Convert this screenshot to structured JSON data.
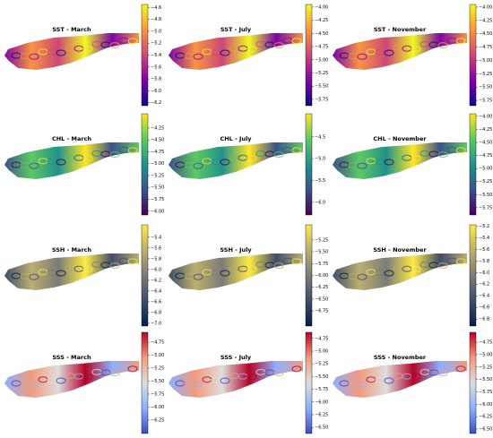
{
  "chart_data": [
    {
      "type": "map",
      "title": "SST - March",
      "colormap": [
        "#0d0887",
        "#7e03a8",
        "#cc4778",
        "#f89540",
        "#f0f921"
      ],
      "clim": [
        -6.25,
        -4.55
      ],
      "cticks": [
        {
          "value": -4.6,
          "label": "−4.6"
        },
        {
          "value": -4.8,
          "label": "−4.8"
        },
        {
          "value": -5.0,
          "label": "−5.0"
        },
        {
          "value": -5.2,
          "label": "−5.2"
        },
        {
          "value": -5.4,
          "label": "−5.4"
        },
        {
          "value": -5.6,
          "label": "−5.6"
        },
        {
          "value": -5.8,
          "label": "−5.8"
        },
        {
          "value": -6.0,
          "label": "−6.0"
        },
        {
          "value": -6.2,
          "label": "−6.2"
        }
      ]
    },
    {
      "type": "map",
      "title": "SST - July",
      "colormap": [
        "#0d0887",
        "#7e03a8",
        "#cc4778",
        "#f89540",
        "#f0f921"
      ],
      "clim": [
        -5.87,
        -3.95
      ],
      "cticks": [
        {
          "value": -4.0,
          "label": "−4.00"
        },
        {
          "value": -4.25,
          "label": "−4.25"
        },
        {
          "value": -4.5,
          "label": "−4.50"
        },
        {
          "value": -4.75,
          "label": "−4.75"
        },
        {
          "value": -5.0,
          "label": "−5.00"
        },
        {
          "value": -5.25,
          "label": "−5.25"
        },
        {
          "value": -5.5,
          "label": "−5.50"
        },
        {
          "value": -5.75,
          "label": "−5.75"
        }
      ]
    },
    {
      "type": "map",
      "title": "SST - November",
      "colormap": [
        "#0d0887",
        "#7e03a8",
        "#cc4778",
        "#f89540",
        "#f0f921"
      ],
      "clim": [
        -5.85,
        -3.95
      ],
      "cticks": [
        {
          "value": -4.0,
          "label": "−4.00"
        },
        {
          "value": -4.25,
          "label": "−4.25"
        },
        {
          "value": -4.5,
          "label": "−4.50"
        },
        {
          "value": -4.75,
          "label": "−4.75"
        },
        {
          "value": -5.0,
          "label": "−5.00"
        },
        {
          "value": -5.25,
          "label": "−5.25"
        },
        {
          "value": -5.5,
          "label": "−5.50"
        },
        {
          "value": -5.75,
          "label": "−5.75"
        }
      ]
    },
    {
      "type": "map",
      "title": "CHL - March",
      "colormap": [
        "#440154",
        "#3b528b",
        "#21918c",
        "#5ec962",
        "#fde725"
      ],
      "clim": [
        -6.08,
        -3.95
      ],
      "cticks": [
        {
          "value": -4.25,
          "label": "−4.25"
        },
        {
          "value": -4.5,
          "label": "−4.50"
        },
        {
          "value": -4.75,
          "label": "−4.75"
        },
        {
          "value": -5.0,
          "label": "−5.00"
        },
        {
          "value": -5.25,
          "label": "−5.25"
        },
        {
          "value": -5.5,
          "label": "−5.50"
        },
        {
          "value": -5.75,
          "label": "−5.75"
        },
        {
          "value": -6.0,
          "label": "−6.00"
        }
      ]
    },
    {
      "type": "map",
      "title": "CHL - July",
      "colormap": [
        "#440154",
        "#3b528b",
        "#21918c",
        "#5ec962",
        "#fde725"
      ],
      "clim": [
        -6.29,
        -3.97
      ],
      "cticks": [
        {
          "value": -4.5,
          "label": "−4.5"
        },
        {
          "value": -5.0,
          "label": "−5.0"
        },
        {
          "value": -5.5,
          "label": "−5.5"
        },
        {
          "value": -6.0,
          "label": "−6.0"
        }
      ]
    },
    {
      "type": "map",
      "title": "CHL - November",
      "colormap": [
        "#440154",
        "#3b528b",
        "#21918c",
        "#5ec962",
        "#fde725"
      ],
      "clim": [
        -5.89,
        -3.95
      ],
      "cticks": [
        {
          "value": -4.0,
          "label": "−4.00"
        },
        {
          "value": -4.25,
          "label": "−4.25"
        },
        {
          "value": -4.5,
          "label": "−4.50"
        },
        {
          "value": -4.75,
          "label": "−4.75"
        },
        {
          "value": -5.0,
          "label": "−5.00"
        },
        {
          "value": -5.25,
          "label": "−5.25"
        },
        {
          "value": -5.5,
          "label": "−5.50"
        },
        {
          "value": -5.75,
          "label": "−5.75"
        }
      ]
    },
    {
      "type": "map",
      "title": "SSH - March",
      "colormap": [
        "#00204d",
        "#414d6b",
        "#7c7b78",
        "#bcaf6f",
        "#ffea46"
      ],
      "clim": [
        -7.05,
        -5.17
      ],
      "cticks": [
        {
          "value": -5.4,
          "label": "−5.4"
        },
        {
          "value": -5.6,
          "label": "−5.6"
        },
        {
          "value": -5.8,
          "label": "−5.8"
        },
        {
          "value": -6.0,
          "label": "−6.0"
        },
        {
          "value": -6.2,
          "label": "−6.2"
        },
        {
          "value": -6.4,
          "label": "−6.4"
        },
        {
          "value": -6.6,
          "label": "−6.6"
        },
        {
          "value": -6.8,
          "label": "−6.8"
        },
        {
          "value": -7.0,
          "label": "−7.0"
        }
      ]
    },
    {
      "type": "map",
      "title": "SSH - July",
      "colormap": [
        "#00204d",
        "#414d6b",
        "#7c7b78",
        "#bcaf6f",
        "#ffea46"
      ],
      "clim": [
        -7.07,
        -4.93
      ],
      "cticks": [
        {
          "value": -5.25,
          "label": "−5.25"
        },
        {
          "value": -5.5,
          "label": "−5.50"
        },
        {
          "value": -5.75,
          "label": "−5.75"
        },
        {
          "value": -6.0,
          "label": "−6.00"
        },
        {
          "value": -6.25,
          "label": "−6.25"
        },
        {
          "value": -6.5,
          "label": "−6.50"
        },
        {
          "value": -6.75,
          "label": "−6.75"
        }
      ]
    },
    {
      "type": "map",
      "title": "SSH - November",
      "colormap": [
        "#00204d",
        "#414d6b",
        "#7c7b78",
        "#bcaf6f",
        "#ffea46"
      ],
      "clim": [
        -6.92,
        -5.18
      ],
      "cticks": [
        {
          "value": -5.2,
          "label": "−5.2"
        },
        {
          "value": -5.4,
          "label": "−5.4"
        },
        {
          "value": -5.6,
          "label": "−5.6"
        },
        {
          "value": -5.8,
          "label": "−5.8"
        },
        {
          "value": -6.0,
          "label": "−6.0"
        },
        {
          "value": -6.2,
          "label": "−6.2"
        },
        {
          "value": -6.4,
          "label": "−6.4"
        },
        {
          "value": -6.6,
          "label": "−6.6"
        },
        {
          "value": -6.8,
          "label": "−6.8"
        }
      ]
    },
    {
      "type": "map",
      "title": "SSS - March",
      "colormap": [
        "#3b4cc0",
        "#8db0fe",
        "#dddddd",
        "#f49a7b",
        "#b40426"
      ],
      "clim": [
        -6.51,
        -4.56
      ],
      "cticks": [
        {
          "value": -4.75,
          "label": "−4.75"
        },
        {
          "value": -5.0,
          "label": "−5.00"
        },
        {
          "value": -5.25,
          "label": "−5.25"
        },
        {
          "value": -5.5,
          "label": "−5.50"
        },
        {
          "value": -5.75,
          "label": "−5.75"
        },
        {
          "value": -6.0,
          "label": "−6.00"
        },
        {
          "value": -6.25,
          "label": "−6.25"
        }
      ]
    },
    {
      "type": "map",
      "title": "SSS - July",
      "colormap": [
        "#3b4cc0",
        "#8db0fe",
        "#dddddd",
        "#f49a7b",
        "#b40426"
      ],
      "clim": [
        -6.62,
        -4.63
      ],
      "cticks": [
        {
          "value": -4.75,
          "label": "−4.75"
        },
        {
          "value": -5.0,
          "label": "−5.00"
        },
        {
          "value": -5.25,
          "label": "−5.25"
        },
        {
          "value": -5.5,
          "label": "−5.50"
        },
        {
          "value": -5.75,
          "label": "−5.75"
        },
        {
          "value": -6.0,
          "label": "−6.00"
        },
        {
          "value": -6.25,
          "label": "−6.25"
        },
        {
          "value": -6.5,
          "label": "−6.50"
        }
      ]
    },
    {
      "type": "map",
      "title": "SSS - November",
      "colormap": [
        "#3b4cc0",
        "#8db0fe",
        "#dddddd",
        "#f49a7b",
        "#b40426"
      ],
      "clim": [
        -6.59,
        -4.55
      ],
      "cticks": [
        {
          "value": -4.75,
          "label": "−4.75"
        },
        {
          "value": -5.0,
          "label": "−5.00"
        },
        {
          "value": -5.25,
          "label": "−5.25"
        },
        {
          "value": -5.5,
          "label": "−5.50"
        },
        {
          "value": -5.75,
          "label": "−5.75"
        },
        {
          "value": -6.0,
          "label": "−6.00"
        },
        {
          "value": -6.25,
          "label": "−6.25"
        },
        {
          "value": -6.5,
          "label": "−6.50"
        }
      ]
    }
  ]
}
